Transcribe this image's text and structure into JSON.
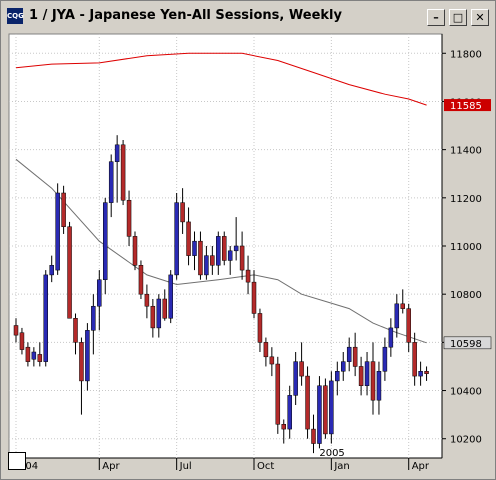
{
  "window": {
    "title": "1 / JYA - Japanese Yen-All Sessions, Weekly",
    "icon_text": "CQG",
    "min_glyph": "–",
    "max_glyph": "□",
    "close_glyph": "✕"
  },
  "colors": {
    "up_candle": "#2a2ab4",
    "down_candle": "#b42a2a",
    "ma_fast": "#707070",
    "ma_slow": "#dd0000",
    "current_price_box": "#cc0000",
    "last_price_box": "#d8d8d8",
    "grid": "#c8c8c8"
  },
  "chart_data": {
    "type": "candlestick",
    "title": "1 / JYA - Japanese Yen-All Sessions, Weekly",
    "xlabel": "",
    "ylabel": "",
    "ylim": [
      10120,
      11880
    ],
    "yticks": [
      10200,
      10400,
      10600,
      10800,
      11000,
      11200,
      11400,
      11600,
      11800
    ],
    "ytick_labels": [
      "10200",
      "10400",
      "10600",
      "10800",
      "11000",
      "11200",
      "11400",
      "11600",
      "11800"
    ],
    "x_labels": [
      {
        "index": 0,
        "label": "..04"
      },
      {
        "index": 14,
        "label": "Apr"
      },
      {
        "index": 27,
        "label": "Jul"
      },
      {
        "index": 40,
        "label": "Oct"
      },
      {
        "index": 53,
        "label": "Jan"
      },
      {
        "index": 66,
        "label": "Apr"
      }
    ],
    "year_marker": {
      "index": 53,
      "label": "2005"
    },
    "grid": true,
    "price_labels": {
      "ma_value": "11585",
      "last_value": "10598"
    },
    "candles": [
      [
        10670,
        10700,
        10600,
        10630
      ],
      [
        10640,
        10660,
        10550,
        10570
      ],
      [
        10580,
        10600,
        10500,
        10520
      ],
      [
        10530,
        10580,
        10500,
        10560
      ],
      [
        10550,
        10600,
        10500,
        10520
      ],
      [
        10520,
        10900,
        10500,
        10880
      ],
      [
        10880,
        10960,
        10850,
        10920
      ],
      [
        10900,
        11260,
        10880,
        11220
      ],
      [
        11220,
        11250,
        11050,
        11080
      ],
      [
        11080,
        11100,
        10700,
        10700
      ],
      [
        10700,
        10720,
        10550,
        10600
      ],
      [
        10600,
        10620,
        10300,
        10440
      ],
      [
        10440,
        10680,
        10400,
        10650
      ],
      [
        10650,
        10800,
        10550,
        10750
      ],
      [
        10750,
        10900,
        10650,
        10860
      ],
      [
        10860,
        11200,
        10800,
        11180
      ],
      [
        11180,
        11380,
        11120,
        11350
      ],
      [
        11350,
        11460,
        11180,
        11420
      ],
      [
        11420,
        11440,
        11170,
        11190
      ],
      [
        11190,
        11230,
        11000,
        11040
      ],
      [
        11040,
        11060,
        10900,
        10920
      ],
      [
        10920,
        10940,
        10780,
        10800
      ],
      [
        10800,
        10840,
        10700,
        10750
      ],
      [
        10750,
        10780,
        10620,
        10660
      ],
      [
        10660,
        10800,
        10620,
        10780
      ],
      [
        10780,
        10820,
        10690,
        10700
      ],
      [
        10700,
        10900,
        10680,
        10880
      ],
      [
        10880,
        11220,
        10860,
        11180
      ],
      [
        11180,
        11240,
        11050,
        11100
      ],
      [
        11100,
        11160,
        10920,
        10960
      ],
      [
        10960,
        11060,
        10900,
        11020
      ],
      [
        11020,
        11060,
        10860,
        10880
      ],
      [
        10880,
        11000,
        10860,
        10960
      ],
      [
        10960,
        11000,
        10880,
        10920
      ],
      [
        10920,
        11060,
        10880,
        11040
      ],
      [
        11040,
        11060,
        10920,
        10940
      ],
      [
        10940,
        11000,
        10880,
        10980
      ],
      [
        10980,
        11120,
        10940,
        11000
      ],
      [
        11000,
        11060,
        10860,
        10900
      ],
      [
        10900,
        10960,
        10800,
        10850
      ],
      [
        10850,
        10900,
        10700,
        10720
      ],
      [
        10720,
        10740,
        10560,
        10600
      ],
      [
        10600,
        10620,
        10500,
        10540
      ],
      [
        10540,
        10580,
        10460,
        10510
      ],
      [
        10510,
        10540,
        10220,
        10260
      ],
      [
        10260,
        10280,
        10180,
        10240
      ],
      [
        10240,
        10420,
        10200,
        10380
      ],
      [
        10380,
        10560,
        10340,
        10520
      ],
      [
        10520,
        10600,
        10420,
        10460
      ],
      [
        10460,
        10500,
        10200,
        10240
      ],
      [
        10240,
        10300,
        10140,
        10180
      ],
      [
        10180,
        10460,
        10160,
        10420
      ],
      [
        10420,
        10450,
        10200,
        10220
      ],
      [
        10220,
        10480,
        10180,
        10440
      ],
      [
        10440,
        10520,
        10380,
        10480
      ],
      [
        10480,
        10560,
        10440,
        10520
      ],
      [
        10520,
        10620,
        10480,
        10580
      ],
      [
        10580,
        10640,
        10460,
        10500
      ],
      [
        10500,
        10540,
        10380,
        10420
      ],
      [
        10420,
        10560,
        10380,
        10520
      ],
      [
        10520,
        10600,
        10300,
        10360
      ],
      [
        10360,
        10520,
        10300,
        10480
      ],
      [
        10480,
        10620,
        10440,
        10580
      ],
      [
        10580,
        10700,
        10540,
        10660
      ],
      [
        10660,
        10800,
        10620,
        10760
      ],
      [
        10760,
        10820,
        10720,
        10740
      ],
      [
        10740,
        10760,
        10560,
        10600
      ],
      [
        10600,
        10640,
        10420,
        10460
      ],
      [
        10460,
        10520,
        10420,
        10480
      ],
      [
        10480,
        10500,
        10440,
        10470
      ]
    ],
    "ma_fast": [
      [
        0,
        11360
      ],
      [
        6,
        11240
      ],
      [
        14,
        11020
      ],
      [
        22,
        10880
      ],
      [
        27,
        10840
      ],
      [
        34,
        10860
      ],
      [
        40,
        10880
      ],
      [
        44,
        10860
      ],
      [
        48,
        10800
      ],
      [
        52,
        10770
      ],
      [
        56,
        10740
      ],
      [
        60,
        10680
      ],
      [
        64,
        10640
      ],
      [
        69,
        10598
      ]
    ],
    "ma_slow": [
      [
        0,
        11740
      ],
      [
        6,
        11755
      ],
      [
        14,
        11760
      ],
      [
        22,
        11790
      ],
      [
        29,
        11800
      ],
      [
        38,
        11800
      ],
      [
        44,
        11770
      ],
      [
        50,
        11720
      ],
      [
        56,
        11670
      ],
      [
        62,
        11630
      ],
      [
        66,
        11610
      ],
      [
        69,
        11585
      ]
    ]
  }
}
